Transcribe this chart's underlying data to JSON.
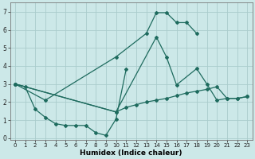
{
  "background_color": "#cce8e8",
  "grid_color": "#aacccc",
  "line_color": "#1e6b5e",
  "xlabel": "Humidex (Indice chaleur)",
  "ylim": [
    -0.1,
    7.5
  ],
  "xlim": [
    -0.5,
    23.5
  ],
  "yticks": [
    0,
    1,
    2,
    3,
    4,
    5,
    6,
    7
  ],
  "xticks": [
    0,
    1,
    2,
    3,
    4,
    5,
    6,
    7,
    8,
    9,
    10,
    11,
    12,
    13,
    14,
    15,
    16,
    17,
    18,
    19,
    20,
    21,
    22,
    23
  ],
  "line1_x": [
    0,
    1,
    2,
    3,
    4,
    5,
    6,
    7,
    8,
    9,
    10,
    11
  ],
  "line1_y": [
    3.0,
    2.85,
    1.6,
    1.15,
    0.8,
    0.7,
    0.7,
    0.7,
    0.3,
    0.15,
    1.05,
    3.8
  ],
  "line2_x": [
    0,
    3,
    10,
    13,
    14,
    15,
    16,
    17,
    18
  ],
  "line2_y": [
    3.0,
    2.1,
    4.5,
    5.8,
    6.95,
    6.95,
    6.4,
    6.4,
    5.8
  ],
  "line3_x": [
    0,
    10,
    14,
    15,
    16,
    18,
    19,
    20,
    21,
    22,
    23
  ],
  "line3_y": [
    3.0,
    1.45,
    5.6,
    4.5,
    2.95,
    3.85,
    3.0,
    2.1,
    2.2,
    2.2,
    2.3
  ],
  "line4_x": [
    0,
    10,
    11,
    12,
    13,
    14,
    15,
    16,
    17,
    18,
    19,
    20,
    21,
    22,
    23
  ],
  "line4_y": [
    3.0,
    1.45,
    1.7,
    1.85,
    2.0,
    2.1,
    2.2,
    2.35,
    2.5,
    2.6,
    2.7,
    2.85,
    2.2,
    2.2,
    2.3
  ]
}
